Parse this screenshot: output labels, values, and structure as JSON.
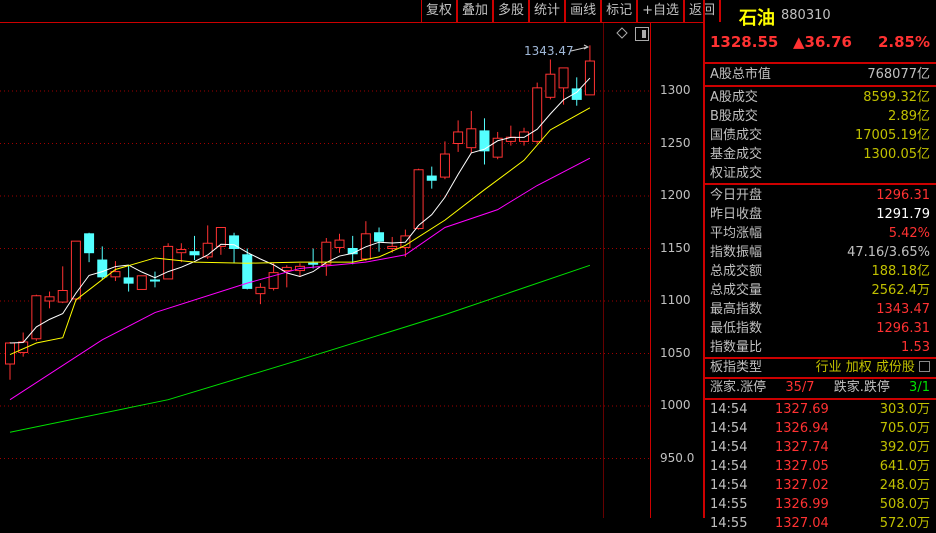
{
  "toolbar": {
    "buttons": [
      "复权",
      "叠加",
      "多股",
      "统计",
      "画线",
      "标记",
      "+自选",
      "返回"
    ]
  },
  "chart": {
    "high_label": "1343.47",
    "y_axis": [
      "1300",
      "1250",
      "1200",
      "1150",
      "1100",
      "1050",
      "1000",
      "950.0"
    ],
    "colors": {
      "up": "#ff3232",
      "down": "#54ffff",
      "ma1": "#ffffff",
      "ma2": "#ffff00",
      "ma3": "#ff00ff",
      "ma4": "#00e000",
      "grid": "#a00000"
    },
    "icons": [
      "diamond-icon",
      "panel-toggle-icon"
    ]
  },
  "chart_data": {
    "type": "candlestick",
    "ylim": [
      930,
      1350
    ],
    "y_ticks": [
      950,
      1000,
      1050,
      1100,
      1150,
      1200,
      1250,
      1300
    ],
    "candles": [
      [
        1040,
        1061,
        1025,
        1060
      ],
      [
        1051,
        1070,
        1047,
        1061
      ],
      [
        1064,
        1106,
        1062,
        1105
      ],
      [
        1100,
        1109,
        1093,
        1104
      ],
      [
        1099,
        1133,
        1098,
        1110
      ],
      [
        1102,
        1157,
        1100,
        1157
      ],
      [
        1164,
        1165,
        1137,
        1146
      ],
      [
        1139,
        1152,
        1120,
        1123
      ],
      [
        1123,
        1138,
        1119,
        1128
      ],
      [
        1122,
        1134,
        1109,
        1117
      ],
      [
        1111,
        1124,
        1111,
        1124
      ],
      [
        1120,
        1128,
        1113,
        1119
      ],
      [
        1121,
        1155,
        1121,
        1152
      ],
      [
        1146,
        1155,
        1137,
        1149
      ],
      [
        1147,
        1162,
        1139,
        1144
      ],
      [
        1142,
        1172,
        1140,
        1155
      ],
      [
        1152,
        1170,
        1144,
        1170
      ],
      [
        1162,
        1165,
        1136,
        1150
      ],
      [
        1144,
        1150,
        1111,
        1112
      ],
      [
        1107,
        1117,
        1097,
        1113
      ],
      [
        1112,
        1136,
        1110,
        1127
      ],
      [
        1129,
        1134,
        1113,
        1132
      ],
      [
        1129,
        1136,
        1123,
        1133
      ],
      [
        1136,
        1150,
        1131,
        1135
      ],
      [
        1135,
        1160,
        1124,
        1156
      ],
      [
        1151,
        1164,
        1146,
        1158
      ],
      [
        1150,
        1162,
        1135,
        1145
      ],
      [
        1140,
        1176,
        1138,
        1164
      ],
      [
        1165,
        1170,
        1147,
        1157
      ],
      [
        1150,
        1161,
        1146,
        1152
      ],
      [
        1151,
        1168,
        1142,
        1162
      ],
      [
        1169,
        1226,
        1168,
        1225
      ],
      [
        1219,
        1228,
        1207,
        1215
      ],
      [
        1218,
        1252,
        1216,
        1240
      ],
      [
        1250,
        1272,
        1242,
        1261
      ],
      [
        1246,
        1281,
        1241,
        1264
      ],
      [
        1262,
        1274,
        1230,
        1243
      ],
      [
        1237,
        1261,
        1235,
        1255
      ],
      [
        1252,
        1267,
        1248,
        1256
      ],
      [
        1252,
        1265,
        1248,
        1261
      ],
      [
        1252,
        1308,
        1250,
        1303
      ],
      [
        1294,
        1330,
        1292,
        1316
      ],
      [
        1303,
        1322,
        1287,
        1322
      ],
      [
        1302,
        1313,
        1286,
        1292
      ],
      [
        1296.31,
        1343.47,
        1296.31,
        1328.55
      ]
    ],
    "ma_lines": [
      {
        "color": "#ffff00",
        "points": [
          [
            0,
            1049
          ],
          [
            2,
            1060
          ],
          [
            4,
            1065
          ],
          [
            5,
            1101
          ],
          [
            8,
            1130
          ],
          [
            11,
            1141
          ],
          [
            14,
            1137
          ],
          [
            18,
            1136
          ],
          [
            22,
            1137
          ],
          [
            26,
            1137
          ],
          [
            28,
            1142
          ],
          [
            30,
            1153
          ],
          [
            33,
            1177
          ],
          [
            36,
            1206
          ],
          [
            39,
            1234
          ],
          [
            41,
            1263
          ],
          [
            44,
            1284
          ]
        ]
      },
      {
        "color": "#ff00ff",
        "points": [
          [
            0,
            1006
          ],
          [
            7,
            1063
          ],
          [
            11,
            1089
          ],
          [
            18,
            1117
          ],
          [
            22,
            1131
          ],
          [
            27,
            1137
          ],
          [
            30,
            1144
          ],
          [
            33,
            1170
          ],
          [
            37,
            1187
          ],
          [
            40,
            1210
          ],
          [
            44,
            1236
          ]
        ]
      },
      {
        "color": "#00e000",
        "points": [
          [
            0,
            975
          ],
          [
            12,
            1006
          ],
          [
            22,
            1044
          ],
          [
            33,
            1087
          ],
          [
            44,
            1134
          ]
        ]
      }
    ]
  },
  "panel": {
    "name": "石油",
    "code": "880310",
    "price": "1328.55",
    "change": "▲36.76",
    "pct": "2.85%",
    "mktcap": {
      "label": "A股总市值",
      "value": "768077亿"
    },
    "turnover": [
      {
        "label": "A股成交",
        "value": "8599.32亿"
      },
      {
        "label": "B股成交",
        "value": "2.89亿"
      },
      {
        "label": "国债成交",
        "value": "17005.19亿"
      },
      {
        "label": "基金成交",
        "value": "1300.05亿"
      },
      {
        "label": "权证成交",
        "value": ""
      }
    ],
    "stats": [
      {
        "label": "今日开盘",
        "value": "1296.31",
        "c": "red"
      },
      {
        "label": "昨日收盘",
        "value": "1291.79",
        "c": "wht"
      },
      {
        "label": "平均涨幅",
        "value": "5.42%",
        "c": "red"
      },
      {
        "label": "指数振幅",
        "value": "47.16/3.65%",
        "c": "gry"
      },
      {
        "label": "总成交额",
        "value": "188.18亿",
        "c": "yel"
      },
      {
        "label": "总成交量",
        "value": "2562.4万",
        "c": "yel"
      },
      {
        "label": "最高指数",
        "value": "1343.47",
        "c": "red"
      },
      {
        "label": "最低指数",
        "value": "1296.31",
        "c": "red"
      },
      {
        "label": "指数量比",
        "value": "1.53",
        "c": "red"
      }
    ],
    "type": {
      "label": "板指类型",
      "value": "行业 加权 成份股"
    },
    "breadth": {
      "up_label": "涨家.涨停",
      "up": "35/7",
      "down_label": "跌家.跌停",
      "down": "3/1"
    },
    "ticks": [
      [
        "14:54",
        "1327.69",
        "303.0万"
      ],
      [
        "14:54",
        "1326.94",
        "705.0万"
      ],
      [
        "14:54",
        "1327.74",
        "392.0万"
      ],
      [
        "14:54",
        "1327.05",
        "641.0万"
      ],
      [
        "14:54",
        "1327.02",
        "248.0万"
      ],
      [
        "14:55",
        "1326.99",
        "508.0万"
      ],
      [
        "14:55",
        "1327.04",
        "572.0万"
      ]
    ]
  }
}
